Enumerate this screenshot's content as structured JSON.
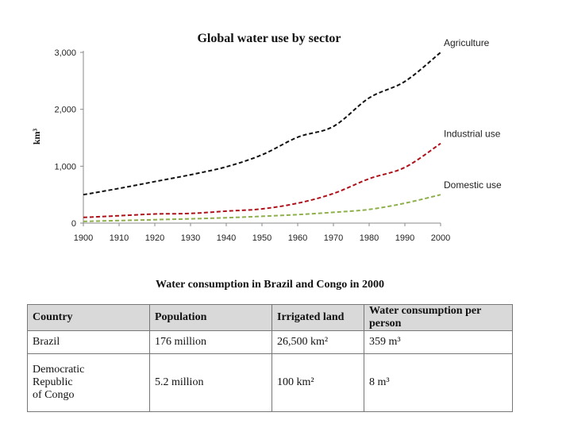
{
  "chart_data": {
    "type": "line",
    "title": "Global water use by sector",
    "ylabel": "km³",
    "xlabel": "",
    "x": [
      1900,
      1910,
      1920,
      1930,
      1940,
      1950,
      1960,
      1970,
      1980,
      1990,
      2000
    ],
    "xlim": [
      1900,
      2000
    ],
    "ylim": [
      0,
      3000
    ],
    "xticks": [
      "1900",
      "1910",
      "1920",
      "1930",
      "1940",
      "1950",
      "1960",
      "1970",
      "1980",
      "1990",
      "2000"
    ],
    "yticks": [
      {
        "value": 0,
        "label": "0"
      },
      {
        "value": 1000,
        "label": "1,000"
      },
      {
        "value": 2000,
        "label": "2,000"
      },
      {
        "value": 3000,
        "label": "3,000"
      }
    ],
    "grid": false,
    "legend": "inline labels at line ends",
    "series": [
      {
        "name": "Agriculture",
        "color": "#111111",
        "style": "dashed",
        "values": [
          500,
          610,
          730,
          850,
          990,
          1200,
          1510,
          1700,
          2200,
          2490,
          3000
        ]
      },
      {
        "name": "Industrial use",
        "color": "#b0101a",
        "style": "dashed",
        "values": [
          100,
          130,
          160,
          170,
          210,
          250,
          350,
          520,
          780,
          980,
          1400
        ]
      },
      {
        "name": "Domestic use",
        "color": "#8db04a",
        "style": "dashed",
        "values": [
          30,
          45,
          60,
          75,
          95,
          120,
          150,
          190,
          240,
          350,
          500
        ]
      }
    ]
  },
  "table": {
    "title": "Water consumption in Brazil and Congo in 2000",
    "headers": [
      "Country",
      "Population",
      "Irrigated land",
      "Water consumption per person"
    ],
    "rows": [
      [
        "Brazil",
        "176 million",
        "26,500 km²",
        "359 m³"
      ],
      [
        "Democratic\nRepublic\nof Congo",
        "5.2 million",
        "100 km²",
        "8 m³"
      ]
    ]
  }
}
